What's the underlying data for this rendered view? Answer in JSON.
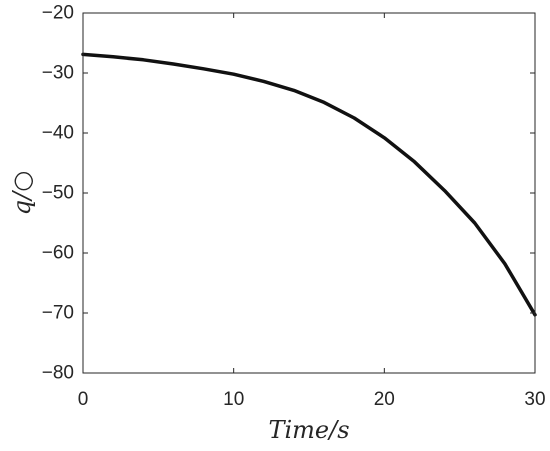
{
  "chart_data": {
    "type": "line",
    "title": "",
    "xlabel": "Time/s",
    "ylabel": "q/○",
    "xlim": [
      0,
      30
    ],
    "ylim": [
      -80,
      -20
    ],
    "xticks": [
      0,
      10,
      20,
      30
    ],
    "yticks": [
      -20,
      -30,
      -40,
      -50,
      -60,
      -70,
      -80
    ],
    "xtick_labels": [
      "0",
      "10",
      "20",
      "30"
    ],
    "ytick_labels": [
      "−20",
      "−30",
      "−40",
      "−50",
      "−60",
      "−70",
      "−80"
    ],
    "grid": false,
    "legend": "none",
    "series": [
      {
        "color": "#111111",
        "x": [
          0,
          2,
          4,
          6,
          8,
          10,
          12,
          14,
          16,
          18,
          20,
          22,
          24,
          26,
          28,
          30
        ],
        "y": [
          -26.9,
          -27.3,
          -27.8,
          -28.5,
          -29.3,
          -30.2,
          -31.4,
          -32.9,
          -34.9,
          -37.5,
          -40.8,
          -44.8,
          -49.6,
          -55.0,
          -61.8,
          -70.3
        ]
      }
    ]
  }
}
